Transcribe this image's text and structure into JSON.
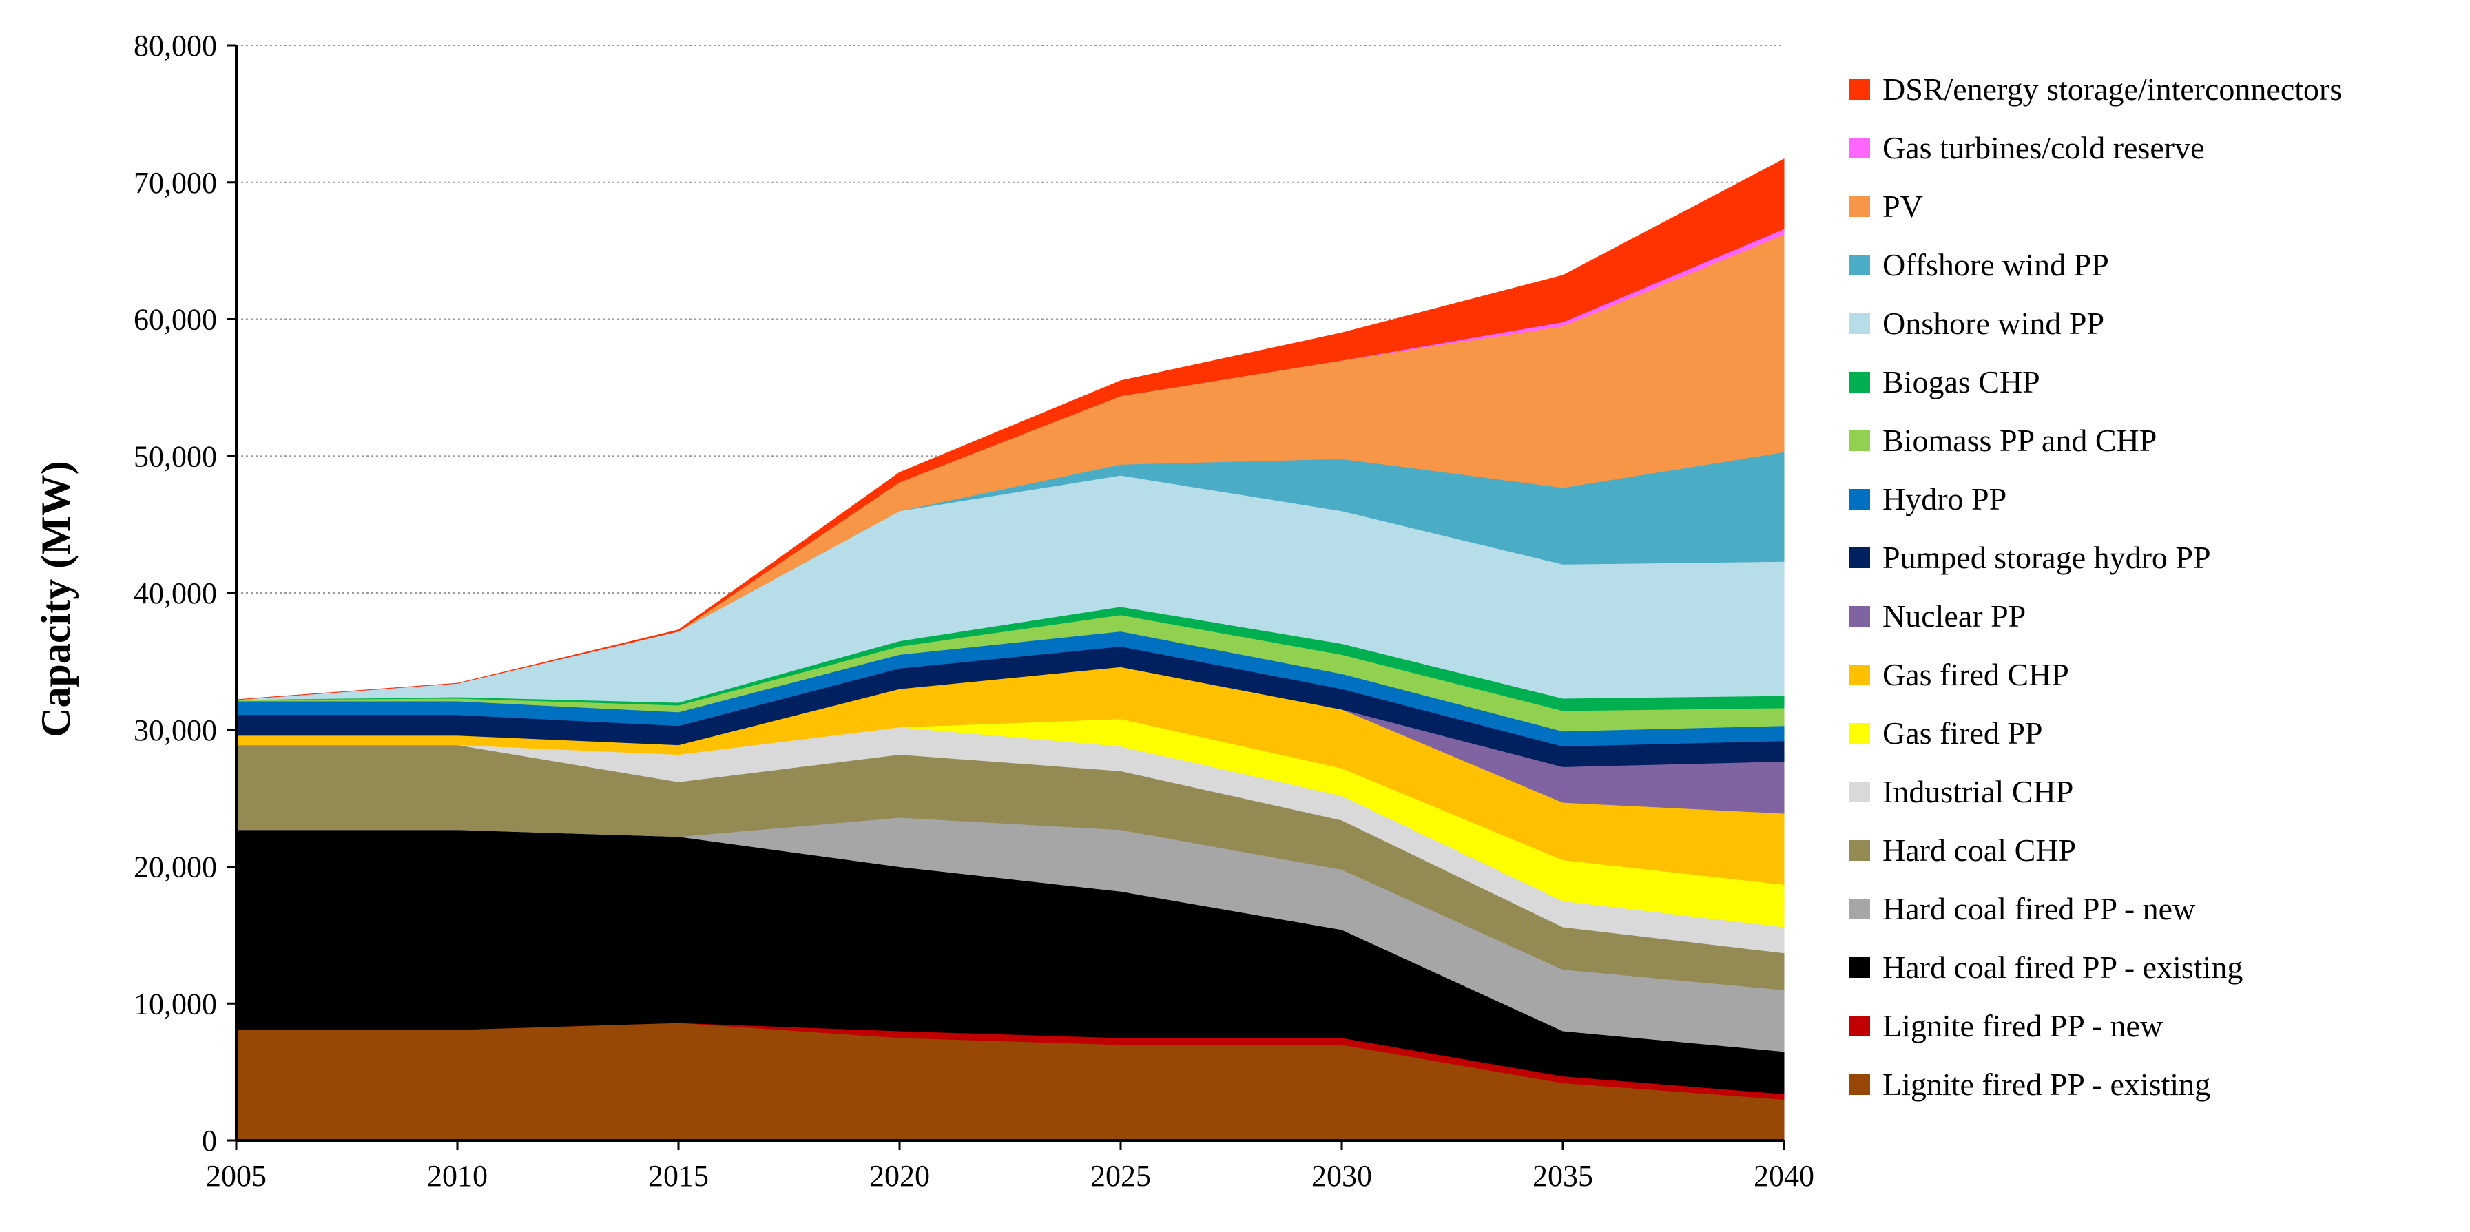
{
  "chart_data": {
    "type": "area",
    "stacked": true,
    "title": "",
    "xlabel": "",
    "ylabel": "Capacity (MW)",
    "x": [
      2005,
      2010,
      2015,
      2020,
      2025,
      2030,
      2035,
      2040
    ],
    "xtick_labels": [
      "2005",
      "2010",
      "2015",
      "2020",
      "2025",
      "2030",
      "2035",
      "2040"
    ],
    "ylim": [
      0,
      80000
    ],
    "yticks": [
      0,
      10000,
      20000,
      30000,
      40000,
      50000,
      60000,
      70000,
      80000
    ],
    "ytick_labels": [
      "0",
      "10,000",
      "20,000",
      "30,000",
      "40,000",
      "50,000",
      "60,000",
      "70,000",
      "80,000"
    ],
    "grid": "horizontal dotted",
    "legend_position": "right",
    "series": [
      {
        "name": "Lignite fired PP - existing",
        "color": "#974806",
        "values": [
          8100,
          8100,
          8600,
          7500,
          7000,
          7000,
          4200,
          3000
        ]
      },
      {
        "name": "Lignite fired PP - new",
        "color": "#C00000",
        "values": [
          0,
          0,
          0,
          500,
          500,
          500,
          500,
          400
        ]
      },
      {
        "name": "Hard coal fired PP - existing",
        "color": "#000000",
        "values": [
          14600,
          14600,
          13600,
          12000,
          10700,
          7900,
          3300,
          3100
        ]
      },
      {
        "name": "Hard coal fired PP - new",
        "color": "#A6A6A6",
        "values": [
          0,
          0,
          0,
          3600,
          4500,
          4400,
          4500,
          4500
        ]
      },
      {
        "name": "Hard coal CHP",
        "color": "#948A54",
        "values": [
          6200,
          6200,
          4000,
          4600,
          4300,
          3600,
          3100,
          2700
        ]
      },
      {
        "name": "Industrial CHP",
        "color": "#D9D9D9",
        "values": [
          0,
          0,
          2000,
          2000,
          1800,
          1800,
          1900,
          1900
        ]
      },
      {
        "name": "Gas fired PP",
        "color": "#FFFF00",
        "values": [
          0,
          0,
          0,
          0,
          2000,
          2000,
          3000,
          3100
        ]
      },
      {
        "name": "Gas fired CHP",
        "color": "#FFC000",
        "values": [
          700,
          700,
          700,
          2800,
          3800,
          4300,
          4200,
          5200
        ]
      },
      {
        "name": "Nuclear PP",
        "color": "#8064A2",
        "values": [
          0,
          0,
          0,
          0,
          0,
          0,
          2600,
          3800
        ]
      },
      {
        "name": "Pumped storage hydro PP",
        "color": "#002060",
        "values": [
          1500,
          1500,
          1400,
          1500,
          1500,
          1500,
          1500,
          1500
        ]
      },
      {
        "name": "Hydro PP",
        "color": "#0070C0",
        "values": [
          1000,
          1000,
          1000,
          1000,
          1100,
          1100,
          1100,
          1100
        ]
      },
      {
        "name": "Biomass PP and CHP",
        "color": "#92D050",
        "values": [
          100,
          200,
          500,
          600,
          1200,
          1400,
          1500,
          1300
        ]
      },
      {
        "name": "Biogas CHP",
        "color": "#00B050",
        "values": [
          0,
          100,
          200,
          400,
          600,
          800,
          900,
          900
        ]
      },
      {
        "name": "Onshore wind PP",
        "color": "#B7DEE8",
        "values": [
          0,
          1000,
          5200,
          9500,
          9600,
          9700,
          9800,
          9800
        ]
      },
      {
        "name": "Offshore wind PP",
        "color": "#4BACC6",
        "values": [
          0,
          0,
          0,
          0,
          800,
          3800,
          5600,
          8000
        ]
      },
      {
        "name": "PV",
        "color": "#F79646",
        "values": [
          0,
          0,
          0,
          2100,
          5000,
          7200,
          11800,
          15900
        ]
      },
      {
        "name": "Gas turbines/cold reserve",
        "color": "#FF66FF",
        "values": [
          0,
          0,
          0,
          0,
          0,
          0,
          300,
          400
        ]
      },
      {
        "name": "DSR/energy storage/interconnectors",
        "color": "#FF3300",
        "values": [
          0,
          0,
          100,
          700,
          1100,
          2000,
          3400,
          5100
        ]
      }
    ]
  }
}
